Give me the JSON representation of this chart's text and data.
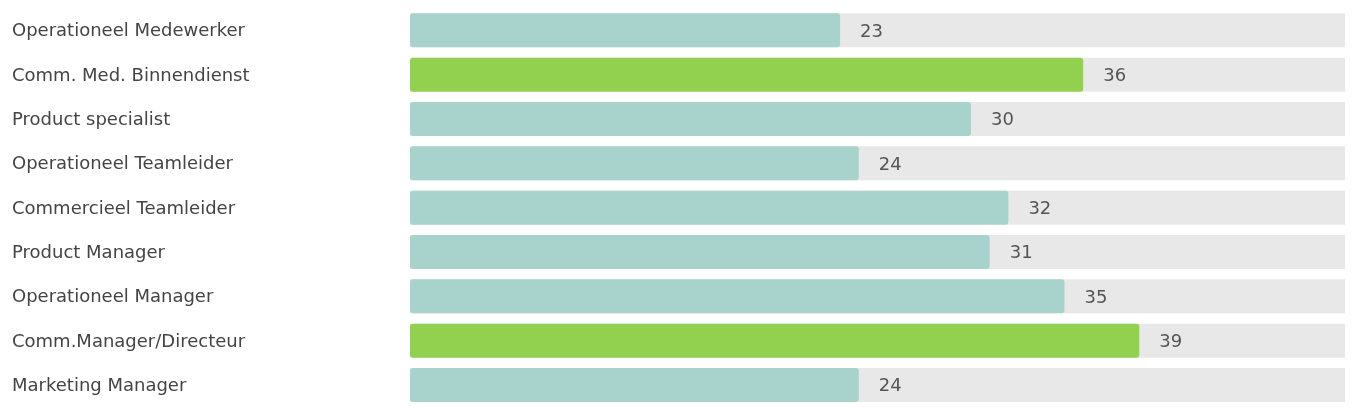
{
  "chart_data": {
    "type": "bar",
    "orientation": "horizontal",
    "categories": [
      "Operationeel Medewerker",
      "Comm. Med. Binnendienst",
      "Product specialist",
      "Operationeel Teamleider",
      "Commercieel Teamleider",
      "Product Manager",
      "Operationeel Manager",
      "Comm.Manager/Directeur",
      "Marketing Manager"
    ],
    "values": [
      23,
      36,
      30,
      24,
      32,
      31,
      35,
      39,
      24
    ],
    "colors": [
      "#a8d3cd",
      "#92d050",
      "#a8d3cd",
      "#a8d3cd",
      "#a8d3cd",
      "#a8d3cd",
      "#a8d3cd",
      "#92d050",
      "#a8d3cd"
    ],
    "xlim": [
      0,
      50
    ],
    "tick_labels": "y",
    "data_labels": true,
    "grid": false,
    "legend": false
  }
}
